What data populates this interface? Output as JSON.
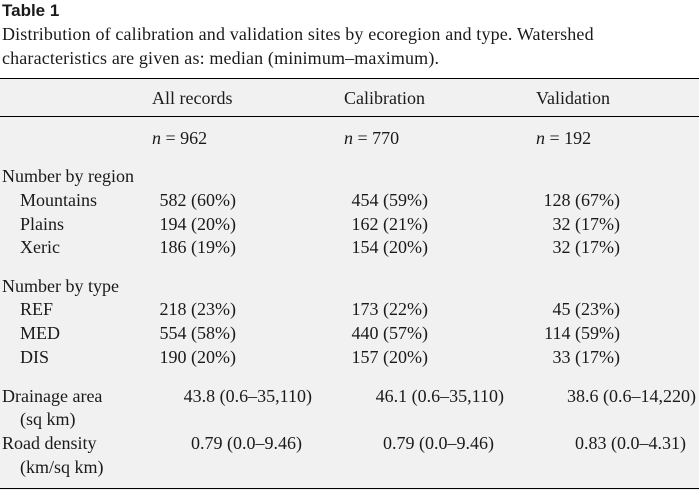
{
  "table": {
    "label": "Table 1",
    "caption": "Distribution of calibration and validation sites by ecoregion and type. Watershed characteristics are given as: median (minimum–maximum).",
    "columns": [
      "All records",
      "Calibration",
      "Validation"
    ],
    "n_symbol": "n",
    "n_values": [
      "= 962",
      "= 770",
      "= 192"
    ],
    "region_header": "Number by region",
    "regions": [
      {
        "label": "Mountains",
        "values": [
          "582 (60%)",
          "454 (59%)",
          "128 (67%)"
        ]
      },
      {
        "label": "Plains",
        "values": [
          "194 (20%)",
          "162 (21%)",
          "32 (17%)"
        ]
      },
      {
        "label": "Xeric",
        "values": [
          "186 (19%)",
          "154 (20%)",
          "32 (17%)"
        ]
      }
    ],
    "type_header": "Number by type",
    "types": [
      {
        "label": "REF",
        "values": [
          "218 (23%)",
          "173 (22%)",
          "45 (23%)"
        ]
      },
      {
        "label": "MED",
        "values": [
          "554 (58%)",
          "440 (57%)",
          "114 (59%)"
        ]
      },
      {
        "label": "DIS",
        "values": [
          "190 (20%)",
          "157 (20%)",
          "33 (17%)"
        ]
      }
    ],
    "characteristics": [
      {
        "label": "Drainage area",
        "unit": "(sq km)",
        "values": [
          "43.8 (0.6–35,110)",
          "46.1 (0.6–35,110)",
          "38.6 (0.6–14,220)"
        ]
      },
      {
        "label": "Road density",
        "unit": "(km/sq km)",
        "values": [
          "0.79 (0.0–9.46)",
          "0.79 (0.0–9.46)",
          "0.83 (0.0–4.31)"
        ]
      }
    ]
  }
}
